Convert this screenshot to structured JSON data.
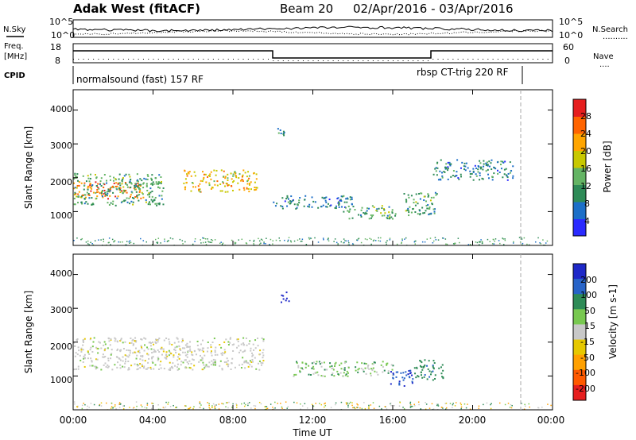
{
  "header": {
    "station": "Adak West (fitACF)",
    "beam": "Beam 20",
    "date_range": "02/Apr/2016 - 03/Apr/2016"
  },
  "top_panels": {
    "nsky_label": "N.Sky",
    "nsearch_label": "N.Search",
    "nsearch_line": "..........",
    "noise_left_ticks": [
      "10^5",
      "10^0"
    ],
    "noise_right_ticks": [
      "10^5",
      "10^0"
    ],
    "freq_label_1": "Freq.",
    "freq_label_2": "[MHz]",
    "freq_ticks": [
      "18",
      "8"
    ],
    "nave_label": "Nave",
    "nave_line": "....",
    "nave_ticks": [
      "60",
      "0"
    ],
    "cpid_label": "CPID",
    "cpid_left": "normalsound (fast) 157 RF",
    "cpid_right": "rbsp CT-trig 220 RF"
  },
  "x_axis": {
    "title": "Time UT",
    "ticks": [
      "00:00",
      "04:00",
      "08:00",
      "12:00",
      "16:00",
      "20:00",
      "00:00"
    ]
  },
  "power_panel": {
    "ylabel": "Slant Range [km]",
    "yticks": [
      "4000",
      "3000",
      "2000",
      "1000"
    ],
    "cbar_title": "Power [dB]",
    "cbar_ticks": [
      "28",
      "24",
      "20",
      "16",
      "12",
      "8",
      "4"
    ],
    "cbar_colors": [
      "#2a2aff",
      "#1c6fc8",
      "#2e8b57",
      "#64b464",
      "#c8c800",
      "#ffa500",
      "#ff6400",
      "#e61e1e"
    ]
  },
  "velocity_panel": {
    "ylabel": "Slant Range [km]",
    "yticks": [
      "4000",
      "3000",
      "2000",
      "1000"
    ],
    "cbar_title": "Velocity [m s-1]",
    "cbar_ticks": [
      "200",
      "100",
      "50",
      "15",
      "-15",
      "-50",
      "-100",
      "-200"
    ],
    "cbar_colors": [
      "#1e28c8",
      "#2864c8",
      "#2e8b57",
      "#78c850",
      "#c8c8c8",
      "#e6c800",
      "#ffa000",
      "#ff5a00",
      "#e61e1e"
    ]
  },
  "chart_data": {
    "type": "heatmap",
    "title": "Adak West (fitACF) Beam 20 02/Apr/2016 - 03/Apr/2016",
    "xlabel": "Time UT",
    "ylabel": "Slant Range [km]",
    "xlim_hours": [
      0,
      24
    ],
    "ylim_km": [
      0,
      4600
    ],
    "frequency_steps": [
      {
        "start_h": 0,
        "end_h": 10,
        "value": "high"
      },
      {
        "start_h": 10,
        "end_h": 18,
        "value": "low"
      },
      {
        "start_h": 18,
        "end_h": 24,
        "value": "high"
      }
    ],
    "power_regions": [
      {
        "t0": 0,
        "t1": 3.5,
        "r0": 1400,
        "r1": 1900,
        "level": 24
      },
      {
        "t0": 0,
        "t1": 4.5,
        "r0": 1200,
        "r1": 2150,
        "level": 12
      },
      {
        "t0": 5.5,
        "t1": 9.2,
        "r0": 1600,
        "r1": 2250,
        "level": 20
      },
      {
        "t0": 10,
        "t1": 14,
        "r0": 1100,
        "r1": 1500,
        "level": 8
      },
      {
        "t0": 13.5,
        "t1": 16.2,
        "r0": 800,
        "r1": 1200,
        "level": 12
      },
      {
        "t0": 16.5,
        "t1": 18.2,
        "r0": 900,
        "r1": 1600,
        "level": 12
      },
      {
        "t0": 18,
        "t1": 22,
        "r0": 1950,
        "r1": 2550,
        "level": 8
      },
      {
        "t0": 10.2,
        "t1": 10.8,
        "r0": 3200,
        "r1": 3500,
        "level": 8
      }
    ],
    "velocity_regions": [
      {
        "t0": 0,
        "t1": 9.5,
        "r0": 1200,
        "r1": 2150,
        "vel": 0
      },
      {
        "t0": 11,
        "t1": 16,
        "r0": 1000,
        "r1": 1450,
        "vel": 20
      },
      {
        "t0": 15.8,
        "t1": 17,
        "r0": 700,
        "r1": 1200,
        "vel": 150
      },
      {
        "t0": 17,
        "t1": 18.5,
        "r0": 900,
        "r1": 1500,
        "vel": 60
      },
      {
        "t0": 10.3,
        "t1": 10.8,
        "r0": 3200,
        "r1": 3500,
        "vel": 180
      }
    ]
  }
}
